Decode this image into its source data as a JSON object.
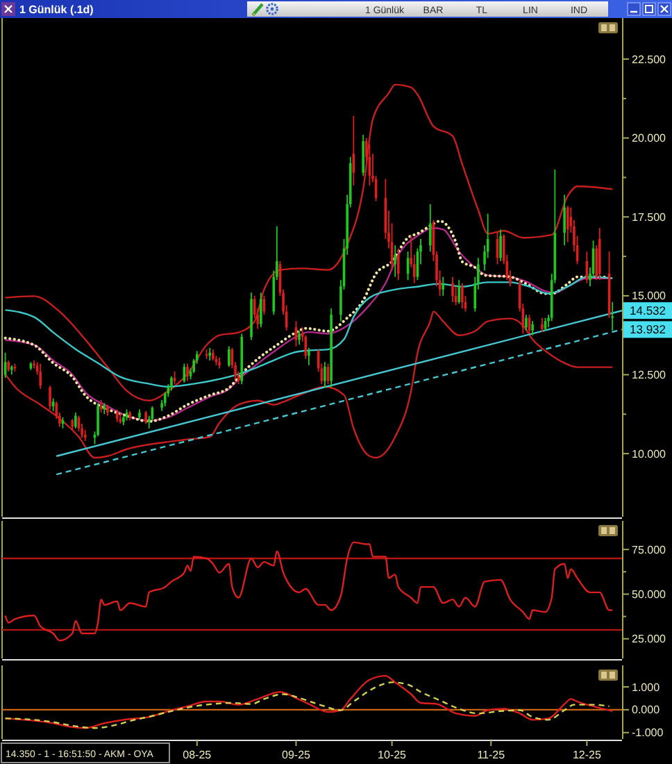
{
  "chart_data": [
    {
      "type": "candlestick",
      "title": "1 Günlük (.1d)",
      "annotations": [
        "1 Günlük",
        "BAR",
        "TL",
        "LIN",
        "IND",
        {
          "text": "14.532",
          "x": "2025-12-12",
          "y": 14.532
        },
        {
          "text": "13.932",
          "x": "2025-12-12",
          "y": 13.932
        }
      ],
      "x": [
        "2025-06-02",
        "2025-06-03",
        "2025-06-04",
        "2025-06-05",
        "2025-06-10",
        "2025-06-11",
        "2025-06-12",
        "2025-06-13",
        "2025-06-16",
        "2025-06-17",
        "2025-06-18",
        "2025-06-19",
        "2025-06-20",
        "2025-06-23",
        "2025-06-24",
        "2025-06-25",
        "2025-06-26",
        "2025-06-27",
        "2025-06-30",
        "2025-07-01",
        "2025-07-02",
        "2025-07-03",
        "2025-07-04",
        "2025-07-07",
        "2025-07-08",
        "2025-07-09",
        "2025-07-10",
        "2025-07-11",
        "2025-07-14",
        "2025-07-16",
        "2025-07-17",
        "2025-07-18",
        "2025-07-21",
        "2025-07-22",
        "2025-07-23",
        "2025-07-24",
        "2025-07-25",
        "2025-07-28",
        "2025-07-29",
        "2025-07-30",
        "2025-07-31",
        "2025-08-01",
        "2025-08-04",
        "2025-08-05",
        "2025-08-06",
        "2025-08-07",
        "2025-08-08",
        "2025-08-11",
        "2025-08-12",
        "2025-08-13",
        "2025-08-14",
        "2025-08-15",
        "2025-08-18",
        "2025-08-19",
        "2025-08-20",
        "2025-08-21",
        "2025-08-22",
        "2025-08-25",
        "2025-08-26",
        "2025-08-27",
        "2025-08-28",
        "2025-08-29",
        "2025-09-01",
        "2025-09-02",
        "2025-09-03",
        "2025-09-04",
        "2025-09-05",
        "2025-09-08",
        "2025-09-09",
        "2025-09-10",
        "2025-09-11",
        "2025-09-12",
        "2025-09-15",
        "2025-09-16",
        "2025-09-17",
        "2025-09-18",
        "2025-09-19",
        "2025-09-22",
        "2025-09-23",
        "2025-09-24",
        "2025-09-25",
        "2025-09-26",
        "2025-09-29",
        "2025-09-30",
        "2025-10-01",
        "2025-10-02",
        "2025-10-03",
        "2025-10-06",
        "2025-10-07",
        "2025-10-08",
        "2025-10-09",
        "2025-10-10",
        "2025-10-13",
        "2025-10-14",
        "2025-10-15",
        "2025-10-16",
        "2025-10-17",
        "2025-10-20",
        "2025-10-21",
        "2025-10-22",
        "2025-10-23",
        "2025-10-24",
        "2025-10-27",
        "2025-10-28",
        "2025-10-30",
        "2025-10-31",
        "2025-11-03",
        "2025-11-04",
        "2025-11-05",
        "2025-11-06",
        "2025-11-07",
        "2025-11-10",
        "2025-11-11",
        "2025-11-12",
        "2025-11-13",
        "2025-11-14",
        "2025-11-17",
        "2025-11-18",
        "2025-11-19",
        "2025-11-20",
        "2025-11-21",
        "2025-11-24",
        "2025-11-25",
        "2025-11-26",
        "2025-11-27",
        "2025-11-28",
        "2025-12-01",
        "2025-12-02",
        "2025-12-03",
        "2025-12-04",
        "2025-12-05",
        "2025-12-08",
        "2025-12-09"
      ],
      "ohlc": [
        [
          12.5,
          13.2,
          12.4,
          12.9
        ],
        [
          12.9,
          12.95,
          12.6,
          12.65
        ],
        [
          12.65,
          12.8,
          12.5,
          12.75
        ],
        [
          12.75,
          12.85,
          12.6,
          12.7
        ],
        [
          12.7,
          12.9,
          12.65,
          12.85
        ],
        [
          12.85,
          12.95,
          12.7,
          12.8
        ],
        [
          12.8,
          12.9,
          12.5,
          12.6
        ],
        [
          12.6,
          12.85,
          12.05,
          12.15
        ],
        [
          12.1,
          12.15,
          11.4,
          11.5
        ],
        [
          11.5,
          11.75,
          11.35,
          11.65
        ],
        [
          11.6,
          11.65,
          11.1,
          11.2
        ],
        [
          11.2,
          11.3,
          10.85,
          10.95
        ],
        [
          10.95,
          11.15,
          10.8,
          11.05
        ],
        [
          11.05,
          11.1,
          10.75,
          10.85
        ],
        [
          10.85,
          11.3,
          10.8,
          11.2
        ],
        [
          11.15,
          11.2,
          10.7,
          10.8
        ],
        [
          10.8,
          10.95,
          10.5,
          10.6
        ],
        [
          10.6,
          10.75,
          10.4,
          10.5
        ],
        [
          10.5,
          10.7,
          10.3,
          10.6
        ],
        [
          10.6,
          11.6,
          10.55,
          11.5
        ],
        [
          11.5,
          11.7,
          11.3,
          11.4
        ],
        [
          11.4,
          11.6,
          11.25,
          11.5
        ],
        [
          11.5,
          11.55,
          11.2,
          11.3
        ],
        [
          11.3,
          11.4,
          11.0,
          11.1
        ],
        [
          11.1,
          11.3,
          10.95,
          11.0
        ],
        [
          11.0,
          11.2,
          10.9,
          11.15
        ],
        [
          11.15,
          11.4,
          11.05,
          11.3
        ],
        [
          11.3,
          11.35,
          11.05,
          11.15
        ],
        [
          11.15,
          11.4,
          11.1,
          11.3
        ],
        [
          11.3,
          11.35,
          10.95,
          11.0
        ],
        [
          11.0,
          11.2,
          10.8,
          11.1
        ],
        [
          11.1,
          11.5,
          11.05,
          11.45
        ],
        [
          11.45,
          11.7,
          11.35,
          11.6
        ],
        [
          11.6,
          11.95,
          11.5,
          11.9
        ],
        [
          11.9,
          12.2,
          11.8,
          12.1
        ],
        [
          12.1,
          12.45,
          12.0,
          12.4
        ],
        [
          12.4,
          12.6,
          12.2,
          12.3
        ],
        [
          12.3,
          12.85,
          12.25,
          12.75
        ],
        [
          12.75,
          12.85,
          12.3,
          12.45
        ],
        [
          12.45,
          12.7,
          12.35,
          12.6
        ],
        [
          12.6,
          13.0,
          12.55,
          12.95
        ],
        [
          12.95,
          13.25,
          12.85,
          13.15
        ],
        [
          13.15,
          13.3,
          13.0,
          13.1
        ],
        [
          13.1,
          13.35,
          12.95,
          13.2
        ],
        [
          13.2,
          13.3,
          12.95,
          13.0
        ],
        [
          13.0,
          13.1,
          12.8,
          12.9
        ],
        [
          12.9,
          13.05,
          12.7,
          12.8
        ],
        [
          12.8,
          13.4,
          12.75,
          13.3
        ],
        [
          13.3,
          13.35,
          12.7,
          12.8
        ],
        [
          12.8,
          12.9,
          12.35,
          12.45
        ],
        [
          12.45,
          12.6,
          12.2,
          12.3
        ],
        [
          12.3,
          13.8,
          12.2,
          13.7
        ],
        [
          13.7,
          15.1,
          13.6,
          14.9
        ],
        [
          14.9,
          15.0,
          14.3,
          14.4
        ],
        [
          14.4,
          14.6,
          13.95,
          14.1
        ],
        [
          14.1,
          15.1,
          14.0,
          14.9
        ],
        [
          14.9,
          15.0,
          14.4,
          14.5
        ],
        [
          14.5,
          15.8,
          14.4,
          15.6
        ],
        [
          15.6,
          17.2,
          15.5,
          16.1
        ],
        [
          16.0,
          16.1,
          15.0,
          15.1
        ],
        [
          15.1,
          15.2,
          14.4,
          14.5
        ],
        [
          14.5,
          14.7,
          13.9,
          14.0
        ],
        [
          14.0,
          14.2,
          13.4,
          13.6
        ],
        [
          13.6,
          13.9,
          13.45,
          13.8
        ],
        [
          13.8,
          14.0,
          13.55,
          13.7
        ],
        [
          13.7,
          13.75,
          13.0,
          13.1
        ],
        [
          13.1,
          13.35,
          12.8,
          13.25
        ],
        [
          13.25,
          13.3,
          12.6,
          12.7
        ],
        [
          12.7,
          12.85,
          12.2,
          12.3
        ],
        [
          12.3,
          12.9,
          12.1,
          12.75
        ],
        [
          12.75,
          12.85,
          12.2,
          12.3
        ],
        [
          12.3,
          14.6,
          12.1,
          14.4
        ],
        [
          14.4,
          15.5,
          14.2,
          15.3
        ],
        [
          15.3,
          16.8,
          15.2,
          16.5
        ],
        [
          16.5,
          18.2,
          16.3,
          17.9
        ],
        [
          17.9,
          19.4,
          17.8,
          19.2
        ],
        [
          19.5,
          20.7,
          18.5,
          18.9
        ],
        [
          18.9,
          20.1,
          18.8,
          19.9
        ],
        [
          19.9,
          20.0,
          19.2,
          19.4
        ],
        [
          19.4,
          19.8,
          18.5,
          18.8
        ],
        [
          18.8,
          19.5,
          18.6,
          18.7
        ],
        [
          18.7,
          18.8,
          18.0,
          18.1
        ],
        [
          18.1,
          18.7,
          16.8,
          17.0
        ],
        [
          17.0,
          17.7,
          16.5,
          16.7
        ],
        [
          16.7,
          17.3,
          15.8,
          16.0
        ],
        [
          16.0,
          16.6,
          15.6,
          16.3
        ],
        [
          16.3,
          16.5,
          15.5,
          15.7
        ],
        [
          15.7,
          16.4,
          15.5,
          16.2
        ],
        [
          16.2,
          16.9,
          15.9,
          16.0
        ],
        [
          16.0,
          16.3,
          15.4,
          15.6
        ],
        [
          15.6,
          16.5,
          15.5,
          16.4
        ],
        [
          16.4,
          16.8,
          16.0,
          16.6
        ],
        [
          16.6,
          17.9,
          16.4,
          17.3
        ],
        [
          17.3,
          17.4,
          16.1,
          16.3
        ],
        [
          16.3,
          16.4,
          15.3,
          15.5
        ],
        [
          15.5,
          15.8,
          15.0,
          15.2
        ],
        [
          15.2,
          15.6,
          15.0,
          15.4
        ],
        [
          15.4,
          15.6,
          14.8,
          15.0
        ],
        [
          15.0,
          15.3,
          14.7,
          14.8
        ],
        [
          14.8,
          15.5,
          14.75,
          15.3
        ],
        [
          15.3,
          15.4,
          14.6,
          14.8
        ],
        [
          14.8,
          15.0,
          14.5,
          14.6
        ],
        [
          14.6,
          15.6,
          14.5,
          15.4
        ],
        [
          15.4,
          16.2,
          15.2,
          16.0
        ],
        [
          16.0,
          16.6,
          15.8,
          16.4
        ],
        [
          16.4,
          17.6,
          16.2,
          16.8
        ],
        [
          16.8,
          17.0,
          16.0,
          16.2
        ],
        [
          16.2,
          17.1,
          16.1,
          16.9
        ],
        [
          16.9,
          16.95,
          16.0,
          16.1
        ],
        [
          16.1,
          16.3,
          15.5,
          15.6
        ],
        [
          15.6,
          15.8,
          15.3,
          15.4
        ],
        [
          15.4,
          15.5,
          14.5,
          14.6
        ],
        [
          14.6,
          14.75,
          13.8,
          14.0
        ],
        [
          14.0,
          14.4,
          13.9,
          14.3
        ],
        [
          14.3,
          14.4,
          13.8,
          13.9
        ],
        [
          13.9,
          14.2,
          13.75,
          14.1
        ],
        [
          14.1,
          14.3,
          13.85,
          13.95
        ],
        [
          13.95,
          14.3,
          13.9,
          14.2
        ],
        [
          14.2,
          14.4,
          14.0,
          14.3
        ],
        [
          14.3,
          15.7,
          14.2,
          15.5
        ],
        [
          15.5,
          19.0,
          15.4,
          17.0
        ],
        [
          17.0,
          18.2,
          16.6,
          17.8
        ],
        [
          17.8,
          17.85,
          16.7,
          17.1
        ],
        [
          17.5,
          17.8,
          17.0,
          17.2
        ],
        [
          17.2,
          17.4,
          16.4,
          16.6
        ],
        [
          16.6,
          16.9,
          16.0,
          16.1
        ],
        [
          16.1,
          16.4,
          15.4,
          15.5
        ],
        [
          15.5,
          15.9,
          15.3,
          15.7
        ],
        [
          15.7,
          16.75,
          15.6,
          16.5
        ],
        [
          16.5,
          16.6,
          15.5,
          15.6
        ],
        [
          16.8,
          17.15,
          15.5,
          15.7
        ],
        [
          15.7,
          16.4,
          14.3,
          14.4
        ],
        [
          14.3,
          14.8,
          13.9,
          14.35
        ]
      ],
      "colors": [
        "#1ec81e",
        "#dc1e1e",
        "#1ec81e",
        "#dc1e1e",
        "#1ec81e",
        "#dc1e1e",
        "#dc1e1e",
        "#dc1e1e",
        "#dc1e1e",
        "#1ec81e",
        "#dc1e1e",
        "#dc1e1e",
        "#1ec81e",
        "#dc1e1e",
        "#1ec81e",
        "#dc1e1e",
        "#dc1e1e",
        "#dc1e1e",
        "#1ec81e",
        "#1ec81e",
        "#dc1e1e",
        "#1ec81e",
        "#dc1e1e",
        "#dc1e1e",
        "#dc1e1e",
        "#1ec81e",
        "#1ec81e",
        "#dc1e1e",
        "#1ec81e",
        "#dc1e1e",
        "#1ec81e",
        "#1ec81e",
        "#1ec81e",
        "#1ec81e",
        "#1ec81e",
        "#1ec81e",
        "#dc1e1e",
        "#1ec81e",
        "#dc1e1e",
        "#1ec81e",
        "#1ec81e",
        "#1ec81e",
        "#dc1e1e",
        "#1ec81e",
        "#dc1e1e",
        "#dc1e1e",
        "#dc1e1e",
        "#1ec81e",
        "#dc1e1e",
        "#dc1e1e",
        "#dc1e1e",
        "#1ec81e",
        "#1ec81e",
        "#dc1e1e",
        "#dc1e1e",
        "#1ec81e",
        "#dc1e1e",
        "#1ec81e",
        "#1ec81e",
        "#dc1e1e",
        "#dc1e1e",
        "#dc1e1e",
        "#dc1e1e",
        "#1ec81e",
        "#dc1e1e",
        "#dc1e1e",
        "#1ec81e",
        "#dc1e1e",
        "#dc1e1e",
        "#1ec81e",
        "#dc1e1e",
        "#1ec81e",
        "#1ec81e",
        "#1ec81e",
        "#1ec81e",
        "#1ec81e",
        "#dc1e1e",
        "#1ec81e",
        "#dc1e1e",
        "#dc1e1e",
        "#dc1e1e",
        "#dc1e1e",
        "#dc1e1e",
        "#dc1e1e",
        "#dc1e1e",
        "#1ec81e",
        "#dc1e1e",
        "#1ec81e",
        "#dc1e1e",
        "#dc1e1e",
        "#1ec81e",
        "#1ec81e",
        "#1ec81e",
        "#dc1e1e",
        "#dc1e1e",
        "#dc1e1e",
        "#1ec81e",
        "#dc1e1e",
        "#dc1e1e",
        "#1ec81e",
        "#dc1e1e",
        "#dc1e1e",
        "#1ec81e",
        "#1ec81e",
        "#1ec81e",
        "#1ec81e",
        "#dc1e1e",
        "#1ec81e",
        "#dc1e1e",
        "#dc1e1e",
        "#dc1e1e",
        "#dc1e1e",
        "#dc1e1e",
        "#1ec81e",
        "#dc1e1e",
        "#1ec81e",
        "#dc1e1e",
        "#1ec81e",
        "#1ec81e",
        "#1ec81e",
        "#1ec81e",
        "#1ec81e",
        "#dc1e1e",
        "#dc1e1e",
        "#dc1e1e",
        "#dc1e1e",
        "#dc1e1e",
        "#1ec81e",
        "#1ec81e",
        "#dc1e1e",
        "#dc1e1e",
        "#dc1e1e",
        "#1ec81e"
      ],
      "series": [
        {
          "type": "line",
          "color": "#c81e1e",
          "x": [
            "2025-06-02",
            "2025-06-11",
            "2025-06-19",
            "2025-06-27",
            "2025-07-04",
            "2025-07-10",
            "2025-07-17",
            "2025-07-23",
            "2025-07-29",
            "2025-08-04",
            "2025-08-08",
            "2025-08-14",
            "2025-08-19",
            "2025-08-22",
            "2025-08-27",
            "2025-09-03",
            "2025-09-11",
            "2025-09-17",
            "2025-09-22",
            "2025-09-25",
            "2025-09-30",
            "2025-10-02",
            "2025-10-07",
            "2025-10-09",
            "2025-10-14",
            "2025-10-20",
            "2025-10-23",
            "2025-10-28",
            "2025-10-31",
            "2025-11-05",
            "2025-11-11",
            "2025-11-20",
            "2025-11-25",
            "2025-11-28",
            "2025-12-09"
          ],
          "values": [
            14.94,
            14.99,
            14.5,
            13.62,
            12.74,
            11.99,
            11.68,
            11.99,
            12.52,
            13.44,
            13.75,
            13.84,
            14.19,
            15.2,
            15.82,
            15.87,
            15.82,
            16.62,
            18.38,
            20.59,
            21.42,
            21.69,
            21.6,
            21.38,
            20.37,
            20.06,
            19.17,
            17.72,
            16.97,
            17.06,
            16.84,
            16.93,
            18.16,
            18.47,
            18.38
          ]
        },
        {
          "type": "line",
          "color": "#c81e1e",
          "x": [
            "2025-06-02",
            "2025-06-05",
            "2025-06-13",
            "2025-06-19",
            "2025-06-25",
            "2025-06-30",
            "2025-07-04",
            "2025-07-10",
            "2025-07-22",
            "2025-07-29",
            "2025-08-05",
            "2025-08-08",
            "2025-08-14",
            "2025-08-20",
            "2025-08-25",
            "2025-08-28",
            "2025-09-03",
            "2025-09-10",
            "2025-09-16",
            "2025-09-19",
            "2025-09-24",
            "2025-09-26",
            "2025-10-02",
            "2025-10-07",
            "2025-10-09",
            "2025-10-13",
            "2025-10-14",
            "2025-10-17",
            "2025-10-22",
            "2025-10-27",
            "2025-10-31",
            "2025-11-07",
            "2025-11-11",
            "2025-11-14",
            "2025-11-19",
            "2025-11-24",
            "2025-11-28",
            "2025-12-09"
          ],
          "values": [
            12.52,
            12.12,
            11.55,
            11.11,
            10.53,
            9.87,
            9.92,
            10.14,
            10.36,
            10.45,
            10.53,
            10.97,
            11.55,
            11.68,
            11.55,
            11.64,
            11.9,
            12.12,
            11.86,
            10.8,
            9.92,
            9.87,
            10.53,
            11.99,
            13.18,
            14.19,
            14.5,
            14.19,
            13.75,
            13.88,
            14.19,
            14.28,
            14.06,
            13.62,
            13.18,
            12.87,
            12.74,
            12.74
          ]
        },
        {
          "type": "line",
          "color": "#b4288c",
          "x": [
            "2025-06-02",
            "2025-06-11",
            "2025-06-17",
            "2025-06-23",
            "2025-06-27",
            "2025-07-04",
            "2025-07-10",
            "2025-07-17",
            "2025-07-23",
            "2025-07-29",
            "2025-08-05",
            "2025-08-11",
            "2025-08-14",
            "2025-08-20",
            "2025-08-26",
            "2025-09-01",
            "2025-09-05",
            "2025-09-11",
            "2025-09-17",
            "2025-09-23",
            "2025-09-29",
            "2025-10-03",
            "2025-10-09",
            "2025-10-14",
            "2025-10-17",
            "2025-10-22",
            "2025-10-27",
            "2025-10-31",
            "2025-11-07",
            "2025-11-12",
            "2025-11-18",
            "2025-11-21",
            "2025-11-26",
            "2025-12-01",
            "2025-12-09"
          ],
          "values": [
            13.6,
            13.45,
            12.95,
            12.5,
            11.95,
            11.5,
            11.2,
            11.05,
            11.15,
            11.45,
            11.8,
            12.05,
            12.35,
            12.85,
            13.3,
            13.7,
            13.85,
            13.8,
            14.05,
            14.6,
            15.4,
            16.3,
            16.9,
            17.15,
            17.1,
            16.4,
            15.9,
            15.65,
            15.6,
            15.45,
            15.15,
            15.1,
            15.35,
            15.55,
            15.55
          ]
        },
        {
          "type": "line",
          "color": "#f0e6a0",
          "line_style": "dotted",
          "x": [
            "2025-06-02",
            "2025-06-11",
            "2025-06-17",
            "2025-06-23",
            "2025-06-27",
            "2025-07-04",
            "2025-07-10",
            "2025-07-17",
            "2025-07-23",
            "2025-07-29",
            "2025-08-05",
            "2025-08-11",
            "2025-08-14",
            "2025-08-20",
            "2025-08-26",
            "2025-09-01",
            "2025-09-04",
            "2025-09-11",
            "2025-09-17",
            "2025-09-22",
            "2025-09-26",
            "2025-10-01",
            "2025-10-06",
            "2025-10-09",
            "2025-10-14",
            "2025-10-16",
            "2025-10-21",
            "2025-10-23",
            "2025-10-27",
            "2025-10-30",
            "2025-11-07",
            "2025-11-12",
            "2025-11-18",
            "2025-11-20",
            "2025-11-25",
            "2025-11-28",
            "2025-12-05",
            "2025-12-09"
          ],
          "values": [
            13.66,
            13.44,
            12.87,
            12.43,
            11.85,
            11.41,
            11.2,
            11.02,
            11.2,
            11.55,
            11.85,
            12.08,
            12.43,
            13.0,
            13.44,
            13.84,
            13.97,
            13.88,
            14.3,
            14.85,
            15.7,
            16.08,
            16.84,
            16.97,
            17.28,
            17.37,
            16.7,
            16.08,
            15.9,
            15.65,
            15.6,
            15.38,
            15.07,
            15.07,
            15.38,
            15.6,
            15.6,
            15.56
          ]
        },
        {
          "type": "line",
          "color": "#3cc8c8",
          "x": [
            "2025-06-02",
            "2025-06-11",
            "2025-06-17",
            "2025-06-24",
            "2025-07-01",
            "2025-07-08",
            "2025-07-17",
            "2025-07-23",
            "2025-07-31",
            "2025-08-07",
            "2025-08-14",
            "2025-08-20",
            "2025-08-26",
            "2025-09-01",
            "2025-09-05",
            "2025-09-11",
            "2025-09-16",
            "2025-09-19",
            "2025-09-24",
            "2025-10-02",
            "2025-10-09",
            "2025-10-16",
            "2025-10-23",
            "2025-10-31",
            "2025-11-07",
            "2025-11-13",
            "2025-11-19",
            "2025-11-25",
            "2025-12-01",
            "2025-12-09"
          ],
          "values": [
            14.55,
            14.33,
            13.84,
            13.31,
            12.87,
            12.43,
            12.21,
            12.12,
            12.21,
            12.34,
            12.52,
            12.74,
            13.0,
            13.22,
            13.27,
            13.3,
            13.62,
            14.33,
            14.94,
            15.2,
            15.29,
            15.38,
            15.29,
            15.43,
            15.43,
            15.29,
            15.07,
            15.29,
            15.6,
            15.56
          ]
        },
        {
          "type": "line",
          "color": "#46c8d2",
          "x": [
            "2025-06-18",
            "2025-12-12"
          ],
          "values": [
            9.92,
            14.532
          ]
        },
        {
          "type": "line",
          "color": "#46c8d2",
          "line_style": "dashed",
          "x": [
            "2025-06-18",
            "2025-12-12"
          ],
          "values": [
            9.34,
            13.932
          ]
        }
      ],
      "xlim": [
        "2025-06-01",
        "2025-12-12"
      ],
      "ylim": [
        8,
        23.8
      ],
      "yticks": [
        {
          "value": 22.5,
          "label": "22.500"
        },
        {
          "value": 21.25,
          "label": null
        },
        {
          "value": 20,
          "label": "20.000"
        },
        {
          "value": 18.75,
          "label": null
        },
        {
          "value": 17.5,
          "label": "17.500"
        },
        {
          "value": 16.25,
          "label": null
        },
        {
          "value": 15,
          "label": "15.000"
        },
        {
          "value": 13.75,
          "label": null
        },
        {
          "value": 12.5,
          "label": "12.500"
        },
        {
          "value": 11.25,
          "label": null
        },
        {
          "value": 10,
          "label": "10.000"
        }
      ],
      "tick_labels": "y"
    },
    {
      "type": "line",
      "series": [
        {
          "color": "#dc1e1e",
          "x": [
            "2025-06-02",
            "2025-06-03",
            "2025-06-05",
            "2025-06-11",
            "2025-06-13",
            "2025-06-17",
            "2025-06-19",
            "2025-06-23",
            "2025-06-24",
            "2025-06-26",
            "2025-06-30",
            "2025-07-01",
            "2025-07-02",
            "2025-07-03",
            "2025-07-07",
            "2025-07-08",
            "2025-07-11",
            "2025-07-16",
            "2025-07-17",
            "2025-07-22",
            "2025-07-24",
            "2025-07-28",
            "2025-07-29",
            "2025-07-30",
            "2025-07-31",
            "2025-08-04",
            "2025-08-06",
            "2025-08-08",
            "2025-08-11",
            "2025-08-12",
            "2025-08-14",
            "2025-08-18",
            "2025-08-20",
            "2025-08-22",
            "2025-08-25",
            "2025-08-26",
            "2025-08-28",
            "2025-08-29",
            "2025-09-02",
            "2025-09-04",
            "2025-09-08",
            "2025-09-10",
            "2025-09-12",
            "2025-09-15",
            "2025-09-17",
            "2025-09-19",
            "2025-09-23",
            "2025-09-24",
            "2025-09-25",
            "2025-09-29",
            "2025-09-30",
            "2025-10-02",
            "2025-10-03",
            "2025-10-07",
            "2025-10-09",
            "2025-10-10",
            "2025-10-14",
            "2025-10-17",
            "2025-10-20",
            "2025-10-22",
            "2025-10-24",
            "2025-10-27",
            "2025-10-30",
            "2025-11-04",
            "2025-11-07",
            "2025-11-11",
            "2025-11-13",
            "2025-11-14",
            "2025-11-18",
            "2025-11-20",
            "2025-11-21",
            "2025-11-24",
            "2025-11-25",
            "2025-11-26",
            "2025-11-28",
            "2025-12-02",
            "2025-12-04",
            "2025-12-05",
            "2025-12-08",
            "2025-12-09"
          ],
          "values": [
            38,
            34,
            36,
            38,
            32,
            28,
            24,
            28,
            35,
            28,
            28,
            34,
            47,
            44,
            46,
            41,
            45,
            43,
            51,
            54,
            57,
            62,
            66,
            63,
            71,
            70,
            67,
            62,
            67,
            54,
            48,
            70,
            65,
            68,
            66,
            74,
            62,
            58,
            51,
            53,
            44,
            44,
            41,
            49,
            70,
            79,
            78,
            78,
            71,
            71,
            59,
            61,
            54,
            48,
            45,
            54,
            54,
            45,
            47,
            43,
            48,
            43,
            57,
            58,
            47,
            40,
            36,
            41,
            40,
            48,
            64,
            67,
            59,
            64,
            59,
            51,
            51,
            51,
            41,
            41
          ]
        }
      ],
      "xlim": [
        "2025-06-01",
        "2025-12-12"
      ],
      "ylim": [
        14,
        91
      ],
      "yticks": [
        {
          "value": 75,
          "label": "75.000"
        },
        {
          "value": 62.5,
          "label": null
        },
        {
          "value": 50,
          "label": "50.000"
        },
        {
          "value": 37.5,
          "label": null
        },
        {
          "value": 25,
          "label": "25.000"
        }
      ],
      "ref_lines": [
        {
          "axis": "y",
          "value": 70,
          "color": "#b41414"
        },
        {
          "axis": "y",
          "value": 30,
          "color": "#b41414"
        }
      ],
      "tick_labels": "y"
    },
    {
      "type": "line",
      "annotations": [
        "14.350 - 1 - 16:51:50 - AKM - OYA"
      ],
      "series": [
        {
          "color": "#dc1e1e",
          "x": [
            "2025-06-02",
            "2025-06-11",
            "2025-06-17",
            "2025-06-23",
            "2025-06-27",
            "2025-07-03",
            "2025-07-10",
            "2025-07-17",
            "2025-07-23",
            "2025-07-29",
            "2025-08-04",
            "2025-08-08",
            "2025-08-14",
            "2025-08-20",
            "2025-08-27",
            "2025-09-01",
            "2025-09-05",
            "2025-09-11",
            "2025-09-15",
            "2025-09-18",
            "2025-09-24",
            "2025-09-29",
            "2025-10-02",
            "2025-10-07",
            "2025-10-10",
            "2025-10-15",
            "2025-10-21",
            "2025-10-27",
            "2025-10-31",
            "2025-11-05",
            "2025-11-10",
            "2025-11-14",
            "2025-11-19",
            "2025-11-24",
            "2025-11-26",
            "2025-11-28",
            "2025-12-03",
            "2025-12-09"
          ],
          "values": [
            -0.38,
            -0.48,
            -0.59,
            -0.76,
            -0.8,
            -0.59,
            -0.42,
            -0.32,
            -0.06,
            0.15,
            0.36,
            0.36,
            0.22,
            0.47,
            0.78,
            0.51,
            0.25,
            -0.1,
            -0.02,
            0.47,
            1.31,
            1.48,
            1.2,
            0.68,
            0.3,
            0.25,
            -0.16,
            -0.27,
            -0.02,
            0.04,
            -0.16,
            -0.44,
            -0.38,
            0.25,
            0.47,
            0.36,
            0.15,
            -0.06
          ]
        },
        {
          "color": "#d2d250",
          "line_style": "dashed",
          "x": [
            "2025-06-02",
            "2025-06-11",
            "2025-06-17",
            "2025-06-23",
            "2025-06-30",
            "2025-07-07",
            "2025-07-11",
            "2025-07-18",
            "2025-07-24",
            "2025-07-31",
            "2025-08-06",
            "2025-08-12",
            "2025-08-18",
            "2025-08-22",
            "2025-08-28",
            "2025-09-03",
            "2025-09-09",
            "2025-09-15",
            "2025-09-19",
            "2025-09-26",
            "2025-10-01",
            "2025-10-06",
            "2025-10-10",
            "2025-10-16",
            "2025-10-22",
            "2025-10-28",
            "2025-11-04",
            "2025-11-10",
            "2025-11-14",
            "2025-11-19",
            "2025-11-24",
            "2025-11-27",
            "2025-12-03",
            "2025-12-08"
          ],
          "values": [
            -0.38,
            -0.44,
            -0.54,
            -0.7,
            -0.8,
            -0.65,
            -0.49,
            -0.27,
            -0.06,
            0.15,
            0.25,
            0.3,
            0.25,
            0.47,
            0.68,
            0.47,
            0.19,
            -0.02,
            0.36,
            0.99,
            1.2,
            1.1,
            0.78,
            0.41,
            0.04,
            -0.16,
            -0.06,
            -0.02,
            -0.32,
            -0.44,
            -0.02,
            0.22,
            0.22,
            0.15
          ]
        }
      ],
      "xlim": [
        "2025-06-01",
        "2025-12-12"
      ],
      "ylim": [
        -1.28,
        1.94
      ],
      "xticks": [
        {
          "value": "2025-08",
          "label": "08-25"
        },
        {
          "value": "2025-09",
          "label": "09-25"
        },
        {
          "value": "2025-10",
          "label": "10-25"
        },
        {
          "value": "2025-11",
          "label": "11-25"
        },
        {
          "value": "2025-12",
          "label": "12-25"
        }
      ],
      "yticks": [
        {
          "value": 1,
          "label": "1.000"
        },
        {
          "value": 0,
          "label": "0.000"
        },
        {
          "value": -1,
          "label": "-1.000"
        }
      ],
      "ref_lines": [
        {
          "axis": "y",
          "value": 0,
          "color": "#c86414"
        }
      ]
    }
  ]
}
